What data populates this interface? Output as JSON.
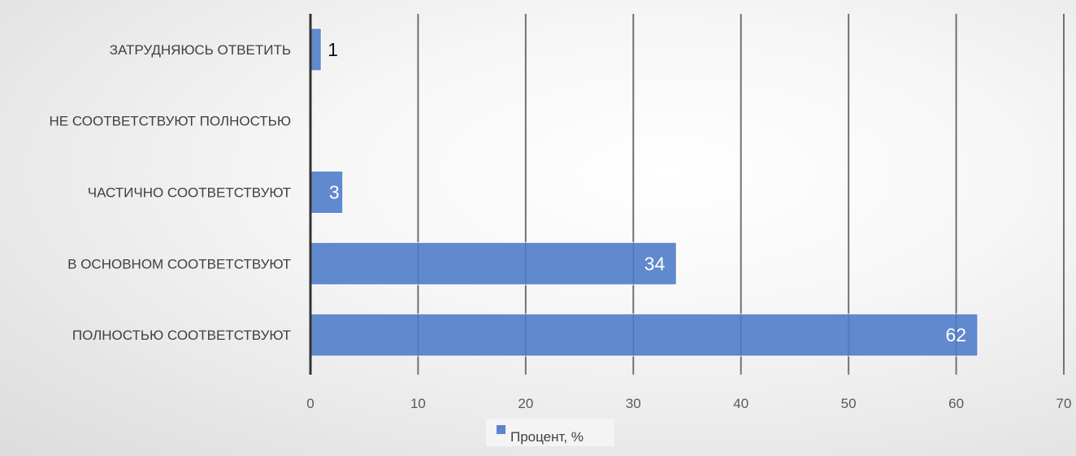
{
  "chart_data": {
    "type": "bar",
    "orientation": "horizontal",
    "categories": [
      "ЗАТРУДНЯЮСЬ ОТВЕТИТЬ",
      "НЕ СООТВЕТСТВУЮТ ПОЛНОСТЬЮ",
      "ЧАСТИЧНО СООТВЕТСТВУЮТ",
      "В ОСНОВНОМ СООТВЕТСТВУЮТ",
      "ПОЛНОСТЬЮ СООТВЕТСТВУЮТ"
    ],
    "series": [
      {
        "name": "Процент, %",
        "values": [
          1,
          0,
          3,
          34,
          62
        ],
        "color": "#5b85cc"
      }
    ],
    "data_labels": [
      "1",
      "",
      "3",
      "34",
      "62"
    ],
    "x_ticks": [
      0,
      10,
      20,
      30,
      40,
      50,
      60,
      70
    ],
    "xlim": [
      0,
      70
    ],
    "grid": true,
    "legend_position": "bottom"
  }
}
